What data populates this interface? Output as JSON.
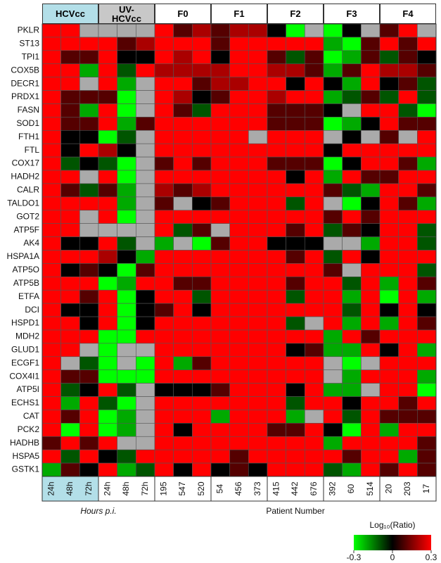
{
  "chart_data": {
    "type": "heatmap",
    "rows": [
      "PKLR",
      "ST13",
      "TPI1",
      "COX5B",
      "DECR1",
      "PRDX1",
      "FASN",
      "SOD1",
      "FTH1",
      "FTL",
      "COX17",
      "HADH2",
      "CALR",
      "TALDO1",
      "GOT2",
      "ATP5F",
      "AK4",
      "HSPA1A",
      "ATP5O",
      "ATP5B",
      "ETFA",
      "DCI",
      "HSPD1",
      "MDH2",
      "GLUD1",
      "ECGF1",
      "COX4I1",
      "ATP5I",
      "ECHS1",
      "CAT",
      "PCK2",
      "HADHB",
      "HSPA5",
      "GSTK1"
    ],
    "x_axis_groups": [
      {
        "label": "Hours p.i.",
        "groups": [
          {
            "name": "HCVcc",
            "color": "#b3dfe8",
            "columns": [
              "24h",
              "48h",
              "72h"
            ]
          },
          {
            "name": "UV-\nHCVcc",
            "color": "#c8c8c8",
            "columns": [
              "24h",
              "48h",
              "72h"
            ]
          }
        ]
      },
      {
        "label": "Patient Number",
        "groups": [
          {
            "name": "F0",
            "color": "#ffffff",
            "columns": [
              "195",
              "547",
              "520"
            ]
          },
          {
            "name": "F1",
            "color": "#ffffff",
            "columns": [
              "54",
              "456",
              "373"
            ]
          },
          {
            "name": "F2",
            "color": "#ffffff",
            "columns": [
              "415",
              "442",
              "676"
            ]
          },
          {
            "name": "F3",
            "color": "#ffffff",
            "columns": [
              "392",
              "60",
              "514"
            ]
          },
          {
            "name": "F4",
            "color": "#ffffff",
            "columns": [
              "20",
              "203",
              "17"
            ]
          }
        ]
      }
    ],
    "values": [
      [
        0.3,
        0.3,
        null,
        null,
        null,
        null,
        0.3,
        0.1,
        0.2,
        0.1,
        0.2,
        0.2,
        0,
        -0.3,
        null,
        -0.3,
        0,
        null,
        0.1,
        0.3,
        null
      ],
      [
        0.3,
        0.3,
        0.3,
        0.3,
        0.1,
        0.2,
        0.3,
        0.3,
        0.3,
        0.1,
        0.3,
        0.3,
        0.3,
        0.3,
        0.3,
        -0.2,
        -0.3,
        0.1,
        0.3,
        0.1,
        0.3
      ],
      [
        0.3,
        0.1,
        0.1,
        0.3,
        0,
        0,
        0.3,
        0.2,
        0.3,
        0,
        0.3,
        0.3,
        0.1,
        -0.1,
        0.1,
        -0.3,
        -0.2,
        0.1,
        -0.1,
        0.1,
        0
      ],
      [
        0.3,
        0.3,
        -0.2,
        0.3,
        -0.1,
        0.3,
        0.2,
        0.2,
        0.2,
        0.2,
        0.3,
        0.3,
        0.2,
        0.2,
        0.1,
        -0.2,
        0.1,
        0.3,
        0.2,
        0.2,
        0.1
      ],
      [
        0.3,
        0.3,
        null,
        0.3,
        -0.2,
        null,
        0.3,
        0.3,
        0.1,
        0.2,
        0.2,
        0.3,
        0.3,
        0,
        0.3,
        0,
        -0.2,
        0.3,
        0,
        0.1,
        -0.1
      ],
      [
        0.3,
        0.1,
        0.1,
        0.1,
        -0.3,
        null,
        0.3,
        0.2,
        0,
        0.1,
        0.3,
        0.3,
        0.2,
        0.3,
        0.3,
        -0.2,
        -0.1,
        0.1,
        -0.1,
        0.3,
        -0.1
      ],
      [
        0.3,
        0.1,
        -0.2,
        0.3,
        -0.3,
        null,
        0.3,
        0.1,
        -0.1,
        0.3,
        0.3,
        0.3,
        0.1,
        0.1,
        0.1,
        0,
        null,
        0.3,
        0.3,
        -0.1,
        -0.3
      ],
      [
        0.3,
        0.1,
        0.1,
        0.3,
        -0.2,
        0.1,
        0.3,
        0.3,
        0.3,
        0.3,
        0.3,
        0.3,
        0.1,
        0.1,
        0.1,
        -0.3,
        -0.2,
        0,
        0.3,
        0.1,
        0.1
      ],
      [
        0.3,
        0,
        0,
        -0.3,
        -0.1,
        null,
        0.3,
        0.3,
        0.3,
        0.3,
        0.3,
        null,
        0.3,
        0.3,
        0.3,
        null,
        0,
        null,
        0.1,
        null,
        0.3
      ],
      [
        0.3,
        0,
        0.3,
        0.2,
        0,
        null,
        0.3,
        0.3,
        0.3,
        0.3,
        0.3,
        0.3,
        0.3,
        0.3,
        0.3,
        0,
        0.3,
        0.3,
        0.3,
        0.3,
        0.3
      ],
      [
        0.3,
        -0.1,
        0,
        -0.1,
        -0.3,
        null,
        0.1,
        0.3,
        0.1,
        0.3,
        0.3,
        0.3,
        0.1,
        0.1,
        0.1,
        -0.3,
        0,
        0.3,
        0.3,
        0.1,
        -0.2
      ],
      [
        0.3,
        0.3,
        null,
        0.3,
        -0.3,
        null,
        0.3,
        0.3,
        0.3,
        0.3,
        0.3,
        0.3,
        0.3,
        0,
        0.3,
        -0.2,
        0.3,
        0.1,
        0.1,
        0.3,
        0.3
      ],
      [
        0.3,
        0.1,
        -0.1,
        0.1,
        -0.2,
        null,
        0.2,
        0.1,
        0.2,
        0.3,
        0.3,
        0.3,
        0.3,
        0.3,
        0.3,
        0.1,
        -0.1,
        -0.2,
        0.3,
        0.3,
        0.1
      ],
      [
        0.3,
        0.3,
        0.3,
        0.3,
        -0.2,
        null,
        0.1,
        null,
        0,
        0.1,
        0.3,
        0.3,
        0.3,
        -0.1,
        0.3,
        null,
        -0.3,
        0,
        0.3,
        0.1,
        -0.2
      ],
      [
        0.3,
        0.3,
        null,
        0.3,
        -0.3,
        null,
        0.3,
        0.3,
        0.3,
        0.3,
        0.3,
        0.3,
        0.3,
        0.3,
        0.3,
        0.1,
        0.3,
        0.1,
        0.3,
        0.3,
        0.3
      ],
      [
        0.3,
        0.3,
        null,
        null,
        null,
        null,
        0.3,
        -0.1,
        0.1,
        null,
        0.3,
        0.3,
        0.3,
        0.1,
        0.3,
        -0.1,
        0.1,
        0,
        0.3,
        0.3,
        -0.1
      ],
      [
        0.3,
        0,
        0,
        0.3,
        -0.1,
        null,
        -0.2,
        null,
        -0.3,
        0.1,
        0.3,
        0.3,
        0,
        0,
        0,
        null,
        null,
        -0.2,
        0.3,
        0.3,
        -0.1
      ],
      [
        0.3,
        0.3,
        0.3,
        0.2,
        0,
        -0.2,
        0.3,
        0.3,
        0.3,
        0.3,
        0.3,
        0.3,
        0.3,
        0.1,
        0.3,
        -0.1,
        0.3,
        0,
        0.3,
        0.3,
        0.3
      ],
      [
        0.3,
        0,
        0.1,
        0,
        -0.3,
        0.1,
        0.3,
        0.3,
        0.3,
        0.3,
        0.3,
        0.3,
        0.3,
        0.3,
        0.3,
        0.1,
        null,
        0.3,
        0.3,
        0.3,
        -0.1
      ],
      [
        0.3,
        0.3,
        0.3,
        -0.3,
        -0.2,
        0.3,
        0.3,
        0.1,
        0.1,
        0.3,
        0.3,
        0.3,
        0.3,
        0.1,
        0.3,
        0.3,
        -0.1,
        0.3,
        -0.2,
        0.3,
        0.1
      ],
      [
        0.3,
        0.3,
        0.1,
        0.3,
        -0.3,
        0,
        0.3,
        0.3,
        -0.1,
        0.3,
        0.3,
        0.3,
        0.3,
        -0.1,
        0.3,
        0.3,
        -0.2,
        0.3,
        -0.3,
        0.3,
        -0.2
      ],
      [
        0.3,
        0,
        0,
        0.3,
        -0.3,
        0,
        0.1,
        0.3,
        0,
        0.3,
        0.3,
        0.3,
        0.3,
        0.3,
        0.3,
        0.3,
        -0.1,
        0.3,
        0,
        0.3,
        0
      ],
      [
        0.3,
        0.3,
        0,
        0.3,
        -0.3,
        0,
        0.3,
        0.3,
        0.3,
        0.3,
        0.3,
        0.3,
        0.3,
        -0.1,
        null,
        0.3,
        -0.2,
        0.3,
        -0.2,
        0.3,
        0.1
      ],
      [
        0.3,
        0.3,
        0.3,
        -0.3,
        -0.3,
        0.3,
        0.3,
        0.3,
        0.3,
        0.3,
        0.3,
        0.3,
        0.3,
        0.3,
        0.3,
        -0.2,
        0.3,
        0.1,
        0.3,
        0.3,
        0.3
      ],
      [
        0.3,
        0.3,
        null,
        -0.3,
        null,
        null,
        0.3,
        0.3,
        0.3,
        0.3,
        0.3,
        0.3,
        0.3,
        0,
        0.1,
        -0.2,
        -0.2,
        0.3,
        0,
        0.3,
        -0.2
      ],
      [
        0.3,
        null,
        -0.1,
        -0.3,
        null,
        -0.3,
        0.3,
        -0.2,
        0.1,
        0.3,
        0.3,
        0.3,
        0.3,
        0.3,
        0.3,
        null,
        -0.3,
        null,
        0.3,
        0.3,
        0.3
      ],
      [
        0.3,
        0.1,
        0.1,
        -0.3,
        -0.3,
        -0.3,
        0.3,
        0.3,
        0.3,
        0.3,
        0.3,
        0.3,
        0.3,
        0.3,
        0.3,
        null,
        -0.2,
        0.3,
        0.3,
        0.3,
        -0.2
      ],
      [
        0.3,
        -0.1,
        0,
        0.3,
        -0.1,
        null,
        0,
        0,
        0,
        0.1,
        0.3,
        0.3,
        0.3,
        0,
        0.3,
        -0.2,
        -0.2,
        null,
        0.3,
        0.3,
        -0.3
      ],
      [
        0.3,
        -0.2,
        0.3,
        -0.1,
        -0.3,
        null,
        0.3,
        0.3,
        0.3,
        0.3,
        0.3,
        0.3,
        0.3,
        -0.1,
        0.3,
        0.3,
        0,
        0.3,
        0.3,
        0.1,
        0.3
      ],
      [
        0.3,
        0.1,
        0.3,
        -0.3,
        -0.2,
        null,
        0.3,
        0.3,
        0.3,
        -0.2,
        0.3,
        0.3,
        0.3,
        -0.2,
        null,
        0.3,
        -0.1,
        0.3,
        0.1,
        0.1,
        0.1
      ],
      [
        0.3,
        -0.3,
        0.3,
        -0.3,
        -0.2,
        null,
        0.3,
        0,
        0.3,
        0.3,
        0.3,
        0.3,
        0.1,
        0.1,
        0.3,
        0,
        -0.3,
        0.3,
        -0.2,
        0.3,
        0.3
      ],
      [
        0.1,
        0.3,
        0.1,
        0.3,
        null,
        null,
        0.3,
        0.3,
        0.3,
        0.3,
        0.3,
        0.3,
        0.3,
        0.3,
        0.3,
        -0.2,
        0.3,
        0.3,
        0.3,
        0.3,
        0.1
      ],
      [
        0.3,
        -0.1,
        0.3,
        0,
        -0.1,
        0.3,
        0.3,
        0.3,
        0.3,
        0.3,
        0.1,
        0.3,
        0.3,
        0.3,
        0.3,
        0.3,
        0.1,
        0.3,
        0.3,
        -0.2,
        0.1
      ],
      [
        -0.2,
        0.1,
        0,
        0.3,
        -0.2,
        -0.1,
        0.3,
        0,
        0.3,
        0,
        0.1,
        0,
        0.3,
        0.3,
        0.3,
        -0.1,
        -0.2,
        0.3,
        0.1,
        0.3,
        0.1
      ]
    ],
    "missing_color": "#aaaaaa",
    "colorscale": {
      "title": "Log₁₀(Ratio)",
      "colors": [
        "#00ff00",
        "#000000",
        "#ff0000"
      ],
      "lim": [
        -0.3,
        0.3
      ],
      "ticks": [
        -0.3,
        0,
        0.3
      ]
    }
  }
}
